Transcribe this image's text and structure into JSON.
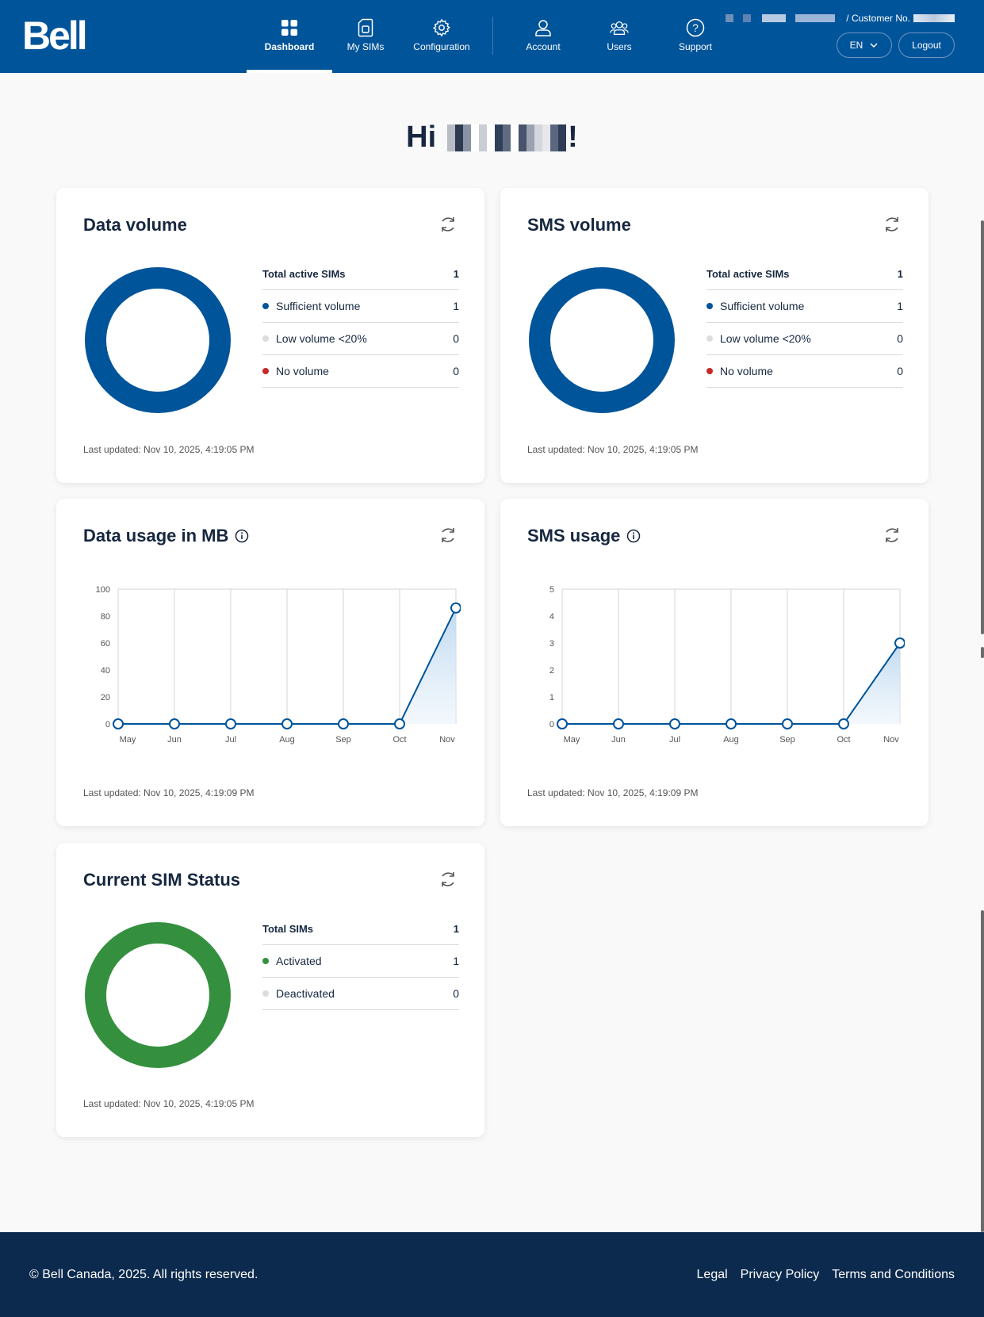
{
  "header": {
    "logo": "Bell",
    "nav": [
      {
        "label": "Dashboard",
        "icon": "dashboard-icon",
        "active": true
      },
      {
        "label": "My SIMs",
        "icon": "sim-icon"
      },
      {
        "label": "Configuration",
        "icon": "gear-icon"
      },
      {
        "label": "Account",
        "icon": "user-icon"
      },
      {
        "label": "Users",
        "icon": "users-icon"
      },
      {
        "label": "Support",
        "icon": "help-icon"
      }
    ],
    "customer_label": "/ Customer No.",
    "language": "EN",
    "logout": "Logout"
  },
  "greeting": {
    "prefix": "Hi",
    "suffix": "!"
  },
  "data_volume": {
    "title": "Data volume",
    "total_label": "Total active SIMs",
    "total_value": "1",
    "rows": [
      {
        "label": "Sufficient volume",
        "value": "1"
      },
      {
        "label": "Low volume <20%",
        "value": "0"
      },
      {
        "label": "No volume",
        "value": "0"
      }
    ],
    "updated": "Last updated: Nov 10, 2025, 4:19:05 PM"
  },
  "sms_volume": {
    "title": "SMS volume",
    "total_label": "Total active SIMs",
    "total_value": "1",
    "rows": [
      {
        "label": "Sufficient volume",
        "value": "1"
      },
      {
        "label": "Low volume <20%",
        "value": "0"
      },
      {
        "label": "No volume",
        "value": "0"
      }
    ],
    "updated": "Last updated: Nov 10, 2025, 4:19:05 PM"
  },
  "data_usage": {
    "title": "Data usage in MB",
    "updated": "Last updated: Nov 10, 2025, 4:19:09 PM"
  },
  "sms_usage": {
    "title": "SMS usage",
    "updated": "Last updated: Nov 10, 2025, 4:19:09 PM"
  },
  "sim_status": {
    "title": "Current SIM Status",
    "total_label": "Total SIMs",
    "total_value": "1",
    "rows": [
      {
        "label": "Activated",
        "value": "1"
      },
      {
        "label": "Deactivated",
        "value": "0"
      }
    ],
    "updated": "Last updated: Nov 10, 2025, 4:19:05 PM"
  },
  "colors": {
    "brand": "#00549a",
    "sufficient": "#00549a",
    "low": "#dcdcdc",
    "none": "#c62828",
    "activated": "#34903f",
    "deactivated": "#dcdcdc"
  },
  "footer": {
    "copyright": "© Bell Canada, 2025. All rights reserved.",
    "links": [
      "Legal",
      "Privacy Policy",
      "Terms and Conditions"
    ]
  },
  "chart_data": [
    {
      "type": "line",
      "title": "Data usage in MB",
      "categories": [
        "May",
        "Jun",
        "Jul",
        "Aug",
        "Sep",
        "Oct",
        "Nov"
      ],
      "values": [
        0,
        0,
        0,
        0,
        0,
        0,
        86
      ],
      "ylim": [
        0,
        100
      ],
      "yticks": [
        0,
        20,
        40,
        60,
        80,
        100
      ],
      "xlabel": "",
      "ylabel": ""
    },
    {
      "type": "line",
      "title": "SMS usage",
      "categories": [
        "May",
        "Jun",
        "Jul",
        "Aug",
        "Sep",
        "Oct",
        "Nov"
      ],
      "values": [
        0,
        0,
        0,
        0,
        0,
        0,
        3
      ],
      "ylim": [
        0,
        5
      ],
      "yticks": [
        0,
        1,
        2,
        3,
        4,
        5
      ],
      "xlabel": "",
      "ylabel": ""
    },
    {
      "type": "pie",
      "title": "Data volume",
      "categories": [
        "Sufficient volume",
        "Low volume <20%",
        "No volume"
      ],
      "values": [
        1,
        0,
        0
      ]
    },
    {
      "type": "pie",
      "title": "SMS volume",
      "categories": [
        "Sufficient volume",
        "Low volume <20%",
        "No volume"
      ],
      "values": [
        1,
        0,
        0
      ]
    },
    {
      "type": "pie",
      "title": "Current SIM Status",
      "categories": [
        "Activated",
        "Deactivated"
      ],
      "values": [
        1,
        0
      ]
    }
  ]
}
